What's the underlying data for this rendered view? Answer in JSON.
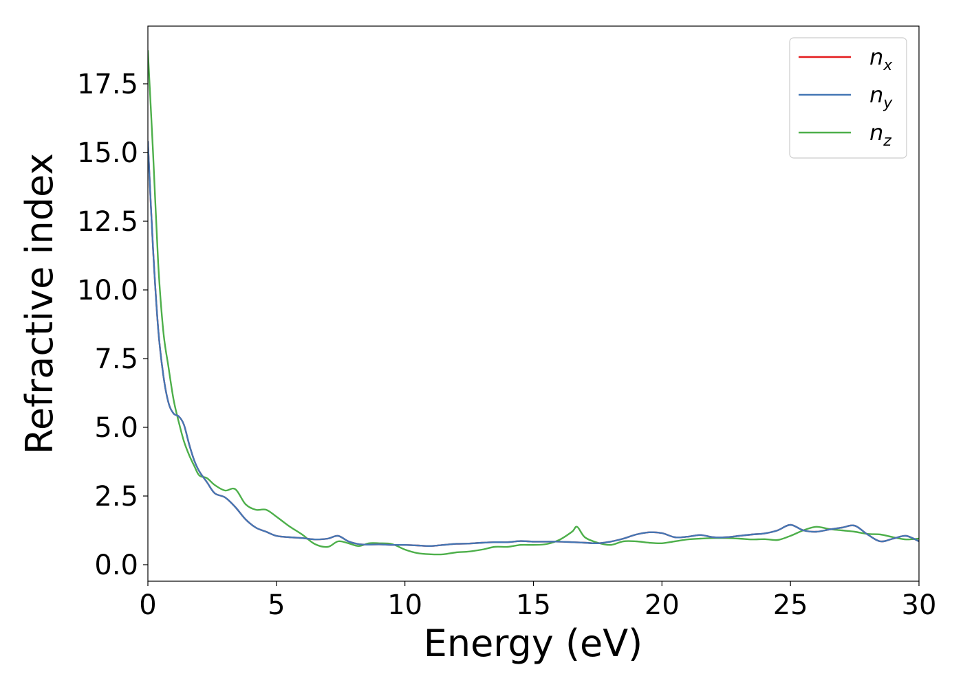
{
  "chart_data": {
    "type": "line",
    "title": "",
    "xlabel": "Energy (eV)",
    "ylabel": "Refractive index",
    "xlim": [
      0,
      30
    ],
    "ylim": [
      -0.6,
      19.6
    ],
    "xticks": [
      0,
      5,
      10,
      15,
      20,
      25,
      30
    ],
    "xtick_labels": [
      "0",
      "5",
      "10",
      "15",
      "20",
      "25",
      "30"
    ],
    "yticks": [
      0.0,
      2.5,
      5.0,
      7.5,
      10.0,
      12.5,
      15.0,
      17.5
    ],
    "ytick_labels": [
      "0.0",
      "2.5",
      "5.0",
      "7.5",
      "10.0",
      "12.5",
      "15.0",
      "17.5"
    ],
    "grid": false,
    "legend_position": "top-right",
    "series": [
      {
        "name": "n_x",
        "label_base": "n",
        "label_sub": "x",
        "color": "#e41a1c",
        "x": [
          0,
          0.2,
          0.4,
          0.6,
          0.8,
          1.0,
          1.2,
          1.4,
          1.6,
          1.8,
          2.0,
          2.3,
          2.6,
          3.0,
          3.4,
          3.8,
          4.2,
          4.6,
          5.0,
          5.5,
          6.0,
          6.5,
          7.0,
          7.4,
          7.8,
          8.2,
          8.6,
          9.0,
          9.5,
          10.0,
          10.5,
          11.0,
          11.5,
          12.0,
          12.5,
          13.0,
          13.5,
          14.0,
          14.5,
          15.0,
          15.5,
          16.0,
          16.5,
          17.0,
          17.5,
          18.0,
          18.5,
          19.0,
          19.5,
          20.0,
          20.5,
          21.0,
          21.5,
          22.0,
          22.5,
          23.0,
          23.5,
          24.0,
          24.5,
          25.0,
          25.5,
          26.0,
          26.5,
          27.0,
          27.5,
          28.0,
          28.5,
          29.0,
          29.5,
          30.0
        ],
        "y": [
          15.4,
          11.5,
          8.6,
          6.9,
          5.9,
          5.5,
          5.4,
          5.1,
          4.4,
          3.8,
          3.4,
          3.0,
          2.6,
          2.45,
          2.1,
          1.65,
          1.35,
          1.2,
          1.05,
          1.0,
          0.97,
          0.92,
          0.95,
          1.05,
          0.85,
          0.75,
          0.73,
          0.74,
          0.72,
          0.72,
          0.7,
          0.68,
          0.72,
          0.76,
          0.77,
          0.8,
          0.82,
          0.82,
          0.86,
          0.84,
          0.84,
          0.84,
          0.82,
          0.8,
          0.78,
          0.84,
          0.95,
          1.1,
          1.18,
          1.15,
          1.0,
          1.02,
          1.08,
          1.0,
          1.0,
          1.05,
          1.1,
          1.14,
          1.25,
          1.45,
          1.25,
          1.2,
          1.28,
          1.35,
          1.42,
          1.1,
          0.85,
          0.95,
          1.05,
          0.85
        ]
      },
      {
        "name": "n_y",
        "label_base": "n",
        "label_sub": "y",
        "color": "#4477b4",
        "x": [
          0,
          0.2,
          0.4,
          0.6,
          0.8,
          1.0,
          1.2,
          1.4,
          1.6,
          1.8,
          2.0,
          2.3,
          2.6,
          3.0,
          3.4,
          3.8,
          4.2,
          4.6,
          5.0,
          5.5,
          6.0,
          6.5,
          7.0,
          7.4,
          7.8,
          8.2,
          8.6,
          9.0,
          9.5,
          10.0,
          10.5,
          11.0,
          11.5,
          12.0,
          12.5,
          13.0,
          13.5,
          14.0,
          14.5,
          15.0,
          15.5,
          16.0,
          16.5,
          17.0,
          17.5,
          18.0,
          18.5,
          19.0,
          19.5,
          20.0,
          20.5,
          21.0,
          21.5,
          22.0,
          22.5,
          23.0,
          23.5,
          24.0,
          24.5,
          25.0,
          25.5,
          26.0,
          26.5,
          27.0,
          27.5,
          28.0,
          28.5,
          29.0,
          29.5,
          30.0
        ],
        "y": [
          15.4,
          11.5,
          8.6,
          6.9,
          5.9,
          5.5,
          5.4,
          5.1,
          4.4,
          3.8,
          3.4,
          3.0,
          2.6,
          2.45,
          2.1,
          1.65,
          1.35,
          1.2,
          1.05,
          1.0,
          0.97,
          0.92,
          0.95,
          1.05,
          0.85,
          0.75,
          0.73,
          0.74,
          0.72,
          0.72,
          0.7,
          0.68,
          0.72,
          0.76,
          0.77,
          0.8,
          0.82,
          0.82,
          0.86,
          0.84,
          0.84,
          0.84,
          0.82,
          0.8,
          0.78,
          0.84,
          0.95,
          1.1,
          1.18,
          1.15,
          1.0,
          1.02,
          1.08,
          1.0,
          1.0,
          1.05,
          1.1,
          1.14,
          1.25,
          1.45,
          1.25,
          1.2,
          1.28,
          1.35,
          1.42,
          1.1,
          0.85,
          0.95,
          1.05,
          0.85
        ]
      },
      {
        "name": "n_z",
        "label_base": "n",
        "label_sub": "z",
        "color": "#4daf4a",
        "x": [
          0,
          0.2,
          0.4,
          0.6,
          0.8,
          1.0,
          1.2,
          1.4,
          1.6,
          1.8,
          2.0,
          2.3,
          2.6,
          3.0,
          3.4,
          3.8,
          4.2,
          4.6,
          5.0,
          5.5,
          6.0,
          6.5,
          7.0,
          7.4,
          7.8,
          8.2,
          8.6,
          9.0,
          9.5,
          10.0,
          10.5,
          11.0,
          11.5,
          12.0,
          12.5,
          13.0,
          13.5,
          14.0,
          14.5,
          15.0,
          15.5,
          16.0,
          16.5,
          16.7,
          17.0,
          17.5,
          18.0,
          18.5,
          19.0,
          19.5,
          20.0,
          20.5,
          21.0,
          21.5,
          22.0,
          22.5,
          23.0,
          23.5,
          24.0,
          24.5,
          25.0,
          25.5,
          26.0,
          26.5,
          27.0,
          27.5,
          28.0,
          28.5,
          29.0,
          29.5,
          30.0
        ],
        "y": [
          18.7,
          15.0,
          11.0,
          8.5,
          7.2,
          6.0,
          5.2,
          4.5,
          4.0,
          3.6,
          3.25,
          3.15,
          2.9,
          2.7,
          2.75,
          2.2,
          2.0,
          2.0,
          1.75,
          1.4,
          1.1,
          0.75,
          0.65,
          0.85,
          0.78,
          0.68,
          0.78,
          0.78,
          0.75,
          0.55,
          0.42,
          0.38,
          0.38,
          0.45,
          0.48,
          0.55,
          0.65,
          0.65,
          0.72,
          0.72,
          0.75,
          0.9,
          1.2,
          1.38,
          1.0,
          0.8,
          0.72,
          0.85,
          0.85,
          0.8,
          0.78,
          0.85,
          0.92,
          0.95,
          0.97,
          0.97,
          0.95,
          0.92,
          0.93,
          0.9,
          1.05,
          1.25,
          1.38,
          1.3,
          1.25,
          1.2,
          1.12,
          1.1,
          1.0,
          0.92,
          0.95
        ]
      }
    ]
  }
}
